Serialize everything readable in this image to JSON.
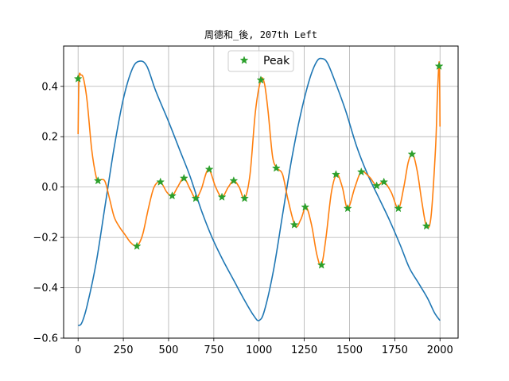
{
  "chart_data": {
    "type": "line",
    "title": "周德和_後, 207th Left",
    "xlabel": "",
    "ylabel": "",
    "xlim": [
      -80,
      2100
    ],
    "ylim": [
      -0.6,
      0.56
    ],
    "xticks": [
      0,
      250,
      500,
      750,
      1000,
      1250,
      1500,
      1750,
      2000
    ],
    "yticks": [
      -0.6,
      -0.4,
      -0.2,
      0.0,
      0.2,
      0.4
    ],
    "xtick_labels": [
      "0",
      "250",
      "500",
      "750",
      "1000",
      "1250",
      "1500",
      "1750",
      "2000"
    ],
    "ytick_labels": [
      "−0.6",
      "−0.4",
      "−0.2",
      "0.0",
      "0.2",
      "0.4"
    ],
    "grid": true,
    "legend_position": "top-center",
    "series": [
      {
        "color": "#1f77b4",
        "x": [
          0,
          20,
          50,
          100,
          150,
          200,
          250,
          300,
          340,
          380,
          430,
          500,
          560,
          620,
          680,
          740,
          800,
          860,
          920,
          970,
          1000,
          1030,
          1080,
          1130,
          1180,
          1230,
          1280,
          1320,
          1350,
          1380,
          1430,
          1480,
          1540,
          1600,
          1660,
          1720,
          1780,
          1830,
          1880,
          1930,
          1970,
          2000
        ],
        "y": [
          -0.55,
          -0.54,
          -0.47,
          -0.3,
          -0.07,
          0.16,
          0.35,
          0.47,
          0.5,
          0.48,
          0.38,
          0.26,
          0.15,
          0.04,
          -0.09,
          -0.2,
          -0.29,
          -0.37,
          -0.45,
          -0.51,
          -0.53,
          -0.49,
          -0.33,
          -0.11,
          0.11,
          0.29,
          0.43,
          0.5,
          0.51,
          0.49,
          0.4,
          0.3,
          0.16,
          0.05,
          -0.04,
          -0.13,
          -0.23,
          -0.32,
          -0.38,
          -0.44,
          -0.5,
          -0.53
        ]
      },
      {
        "color": "#ff7f0e",
        "x": [
          0,
          5,
          15,
          30,
          50,
          75,
          100,
          115,
          130,
          150,
          175,
          200,
          230,
          260,
          290,
          320,
          340,
          360,
          390,
          420,
          455,
          490,
          520,
          550,
          585,
          620,
          650,
          680,
          720,
          760,
          795,
          830,
          860,
          890,
          920,
          950,
          980,
          1010,
          1030,
          1050,
          1075,
          1100,
          1130,
          1160,
          1200,
          1230,
          1260,
          1290,
          1320,
          1345,
          1370,
          1400,
          1430,
          1460,
          1490,
          1530,
          1565,
          1610,
          1650,
          1690,
          1730,
          1770,
          1800,
          1825,
          1850,
          1875,
          1900,
          1925,
          1950,
          1975,
          1985,
          1993,
          1997,
          2000
        ],
        "y": [
          0.21,
          0.43,
          0.445,
          0.43,
          0.34,
          0.15,
          0.04,
          0.025,
          0.03,
          0.02,
          -0.05,
          -0.12,
          -0.16,
          -0.19,
          -0.22,
          -0.235,
          -0.22,
          -0.18,
          -0.08,
          0.0,
          0.02,
          -0.02,
          -0.035,
          0.0,
          0.035,
          -0.01,
          -0.045,
          -0.01,
          0.07,
          0.0,
          -0.04,
          0.0,
          0.025,
          0.0,
          -0.045,
          0.05,
          0.3,
          0.425,
          0.41,
          0.3,
          0.12,
          0.075,
          0.05,
          -0.05,
          -0.155,
          -0.13,
          -0.08,
          -0.15,
          -0.27,
          -0.31,
          -0.2,
          -0.02,
          0.05,
          0.0,
          -0.085,
          0.0,
          0.06,
          0.04,
          0.005,
          0.02,
          -0.02,
          -0.085,
          0.0,
          0.1,
          0.13,
          0.06,
          -0.06,
          -0.155,
          -0.12,
          0.15,
          0.35,
          0.48,
          0.47,
          0.24
        ]
      }
    ],
    "peaks": {
      "name": "Peak",
      "color": "#2ca02c",
      "marker": "star",
      "x": [
        0,
        110,
        325,
        455,
        520,
        585,
        650,
        725,
        795,
        860,
        920,
        1010,
        1095,
        1195,
        1255,
        1345,
        1425,
        1490,
        1565,
        1650,
        1690,
        1770,
        1845,
        1925,
        1995
      ],
      "y": [
        0.43,
        0.025,
        -0.235,
        0.02,
        -0.035,
        0.035,
        -0.045,
        0.07,
        -0.04,
        0.025,
        -0.045,
        0.425,
        0.075,
        -0.15,
        -0.08,
        -0.31,
        0.05,
        -0.085,
        0.06,
        0.005,
        0.02,
        -0.085,
        0.13,
        -0.155,
        0.48
      ]
    }
  }
}
